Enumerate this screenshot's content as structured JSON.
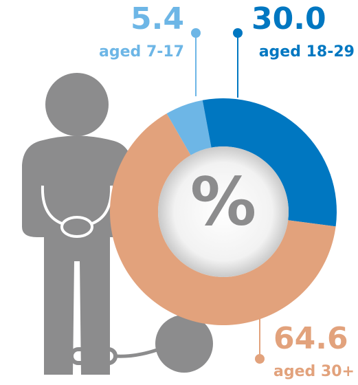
{
  "chart_data": {
    "type": "donut",
    "center_label": "%",
    "categories": [
      "aged 7-17",
      "aged 18-29",
      "aged 30+"
    ],
    "values": [
      5.4,
      30.0,
      64.6
    ],
    "value_labels": [
      "5.4",
      "30.0",
      "64.6"
    ],
    "colors": [
      "#6db6e6",
      "#0077c1",
      "#e2a27c"
    ]
  }
}
